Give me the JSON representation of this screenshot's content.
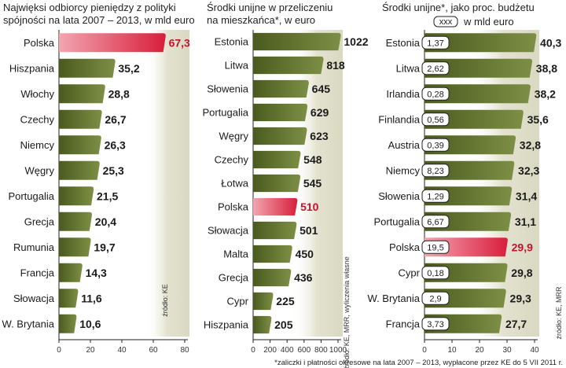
{
  "chart_data": [
    {
      "type": "bar",
      "orientation": "horizontal",
      "title": "Najwięksi odbiorcy pieniędzy z polityki spójności na lata 2007 – 2013, w mld euro",
      "title_lines": [
        "Najwięksi odbiorcy pieniędzy z polityki",
        "spójności na lata 2007 – 2013, w mld euro"
      ],
      "categories": [
        "Polska",
        "Hiszpania",
        "Włochy",
        "Czechy",
        "Niemcy",
        "Węgry",
        "Portugalia",
        "Grecja",
        "Rumunia",
        "Francja",
        "Słowacja",
        "W. Brytania"
      ],
      "values": [
        67.3,
        35.2,
        28.8,
        26.7,
        26.3,
        25.3,
        21.5,
        20.4,
        19.7,
        14.3,
        11.6,
        10.6
      ],
      "value_labels": [
        "67,3",
        "35,2",
        "28,8",
        "26,7",
        "26,3",
        "25,3",
        "21,5",
        "20,4",
        "19,7",
        "14,3",
        "11,6",
        "10,6"
      ],
      "highlight": "Polska",
      "xlim": [
        0,
        80
      ],
      "ticks": [
        "0",
        "20",
        "40",
        "60",
        "80"
      ],
      "source": "źródło: KE"
    },
    {
      "type": "bar",
      "orientation": "horizontal",
      "title": "Środki unijne w przeliczeniu na mieszkańca*, w euro",
      "title_lines": [
        "Środki unijne w przeliczeniu",
        "na mieszkańca*, w euro"
      ],
      "categories": [
        "Estonia",
        "Litwa",
        "Słowenia",
        "Portugalia",
        "Węgry",
        "Czechy",
        "Łotwa",
        "Polska",
        "Słowacja",
        "Malta",
        "Grecja",
        "Cypr",
        "Hiszpania"
      ],
      "values": [
        1022,
        818,
        645,
        629,
        623,
        548,
        545,
        510,
        501,
        450,
        436,
        225,
        205
      ],
      "value_labels": [
        "1022",
        "818",
        "645",
        "629",
        "623",
        "548",
        "545",
        "510",
        "501",
        "450",
        "436",
        "225",
        "205"
      ],
      "highlight": "Polska",
      "xlim": [
        0,
        1000
      ],
      "ticks": [
        "0",
        "200",
        "400",
        "600",
        "800",
        "1000"
      ],
      "source": "źródło: KE, MRR, wyliczenia własne"
    },
    {
      "type": "bar",
      "orientation": "horizontal",
      "title": "Środki unijne*, jako proc. budżetu",
      "title_lines": [
        "Środki unijne*, jako proc. budżetu"
      ],
      "legend_box": "xxx",
      "legend_text": "w mld euro",
      "categories": [
        "Estonia",
        "Litwa",
        "Irlandia",
        "Finlandia",
        "Austria",
        "Niemcy",
        "Słowenia",
        "Portugalia",
        "Polska",
        "Cypr",
        "W. Brytania",
        "Francja"
      ],
      "values": [
        40.3,
        38.8,
        38.2,
        35.6,
        32.8,
        32.3,
        31.4,
        31.1,
        29.9,
        29.8,
        29.3,
        27.7
      ],
      "value_labels": [
        "40,3",
        "38,8",
        "38,2",
        "35,6",
        "32,8",
        "32,3",
        "31,4",
        "31,1",
        "29,9",
        "29,8",
        "29,3",
        "27,7"
      ],
      "budget_labels": [
        "1,37",
        "2,62",
        "0,28",
        "0,56",
        "0,39",
        "8,23",
        "1,29",
        "6,67",
        "19,5",
        "0,18",
        "2,9",
        "3,73"
      ],
      "highlight": "Polska",
      "xlim": [
        0,
        40
      ],
      "ticks": [
        "0",
        "10",
        "20",
        "30",
        "40"
      ],
      "source": "źródło: KE, MRR"
    }
  ],
  "footnote": "*zaliczki i płatności okresowe na lata 2007 – 2013, wypłacone przez KE do 5 VII 2011 r.",
  "colors": {
    "bar_dark": "#4a5a1e",
    "bar_light": "#7d8f45",
    "hl_dark": "#d81e3c",
    "hl_light": "#f2a5b0",
    "band": "#e6e6d6",
    "value_highlight": "#c8102e"
  }
}
